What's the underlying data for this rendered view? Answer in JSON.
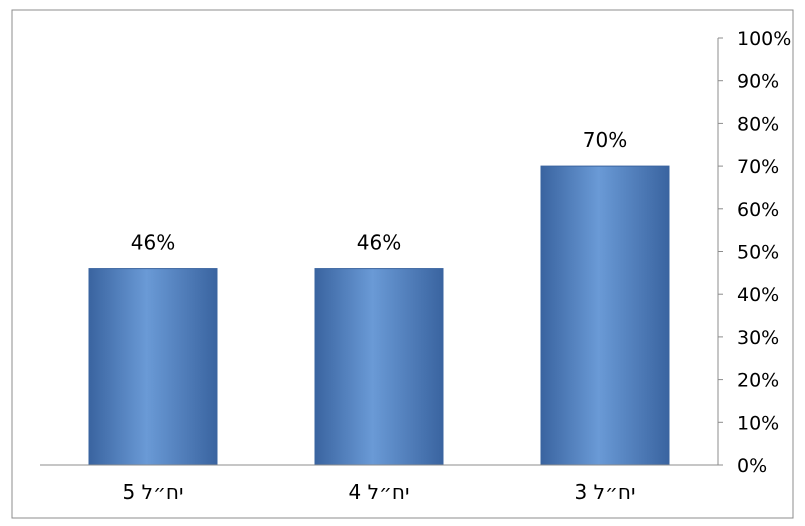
{
  "chart_data": {
    "type": "bar",
    "title": "",
    "xlabel": "",
    "ylabel": "",
    "categories": [
      "5 יח״ל",
      "4 יח״ל",
      "3 יח״ל"
    ],
    "values": [
      46,
      46,
      70
    ],
    "data_labels": [
      "46%",
      "46%",
      "70%"
    ],
    "ylim": [
      0,
      100
    ],
    "y_ticks": [
      {
        "value": 0,
        "label": "0%"
      },
      {
        "value": 10,
        "label": "10%"
      },
      {
        "value": 20,
        "label": "20%"
      },
      {
        "value": 30,
        "label": "30%"
      },
      {
        "value": 40,
        "label": "40%"
      },
      {
        "value": 50,
        "label": "50%"
      },
      {
        "value": 60,
        "label": "60%"
      },
      {
        "value": 70,
        "label": "70%"
      },
      {
        "value": 80,
        "label": "80%"
      },
      {
        "value": 90,
        "label": "90%"
      },
      {
        "value": 100,
        "label": "100%"
      }
    ],
    "y_axis_position": "right",
    "grid": false,
    "legend": "none",
    "colors": {
      "bar_fill": "#4f81bd",
      "bar_highlight": "#6a9ad6",
      "bar_shadow": "#3a64a0",
      "axis": "#8c8c8c",
      "text": "#000000",
      "border": "#8c8c8c"
    }
  }
}
